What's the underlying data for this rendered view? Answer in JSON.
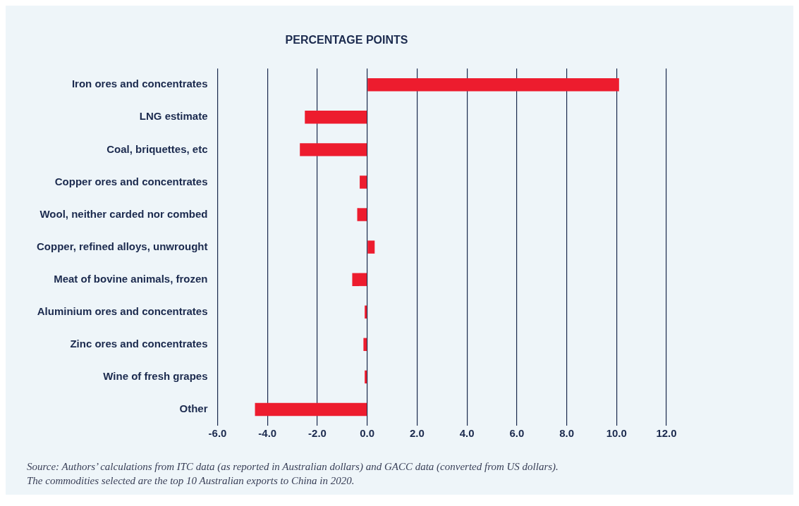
{
  "chart_data": {
    "type": "bar",
    "orientation": "horizontal",
    "title": "PERCENTAGE POINTS",
    "categories": [
      "Iron ores and concentrates",
      "LNG estimate",
      "Coal, briquettes, etc",
      "Copper ores and concentrates",
      "Wool, neither carded nor combed",
      "Copper, refined alloys, unwrought",
      "Meat of bovine animals, frozen",
      "Aluminium ores and concentrates",
      "Zinc ores and concentrates",
      "Wine of fresh grapes",
      "Other"
    ],
    "values": [
      10.1,
      -2.5,
      -2.7,
      -0.3,
      -0.4,
      0.3,
      -0.6,
      -0.1,
      -0.15,
      -0.1,
      -4.5
    ],
    "color": "#ed1c2e",
    "xlim": [
      -6,
      12
    ],
    "xticks": [
      {
        "value": -6,
        "label": "-6.0"
      },
      {
        "value": -4,
        "label": "-4.0"
      },
      {
        "value": -2,
        "label": "-2.0"
      },
      {
        "value": 0,
        "label": "0.0"
      },
      {
        "value": 2,
        "label": "2.0"
      },
      {
        "value": 4,
        "label": "4.0"
      },
      {
        "value": 6,
        "label": "6.0"
      },
      {
        "value": 8,
        "label": "8.0"
      },
      {
        "value": 10,
        "label": "10.0"
      },
      {
        "value": 12,
        "label": "12.0"
      }
    ],
    "grid": "x",
    "legend": false,
    "annotations": [
      "Source: Authors’ calculations from ITC data (as reported in Australian dollars) and GACC data (converted from US dollars).",
      "The commodities selected are the top 10 Australian exports to China in 2020."
    ]
  }
}
